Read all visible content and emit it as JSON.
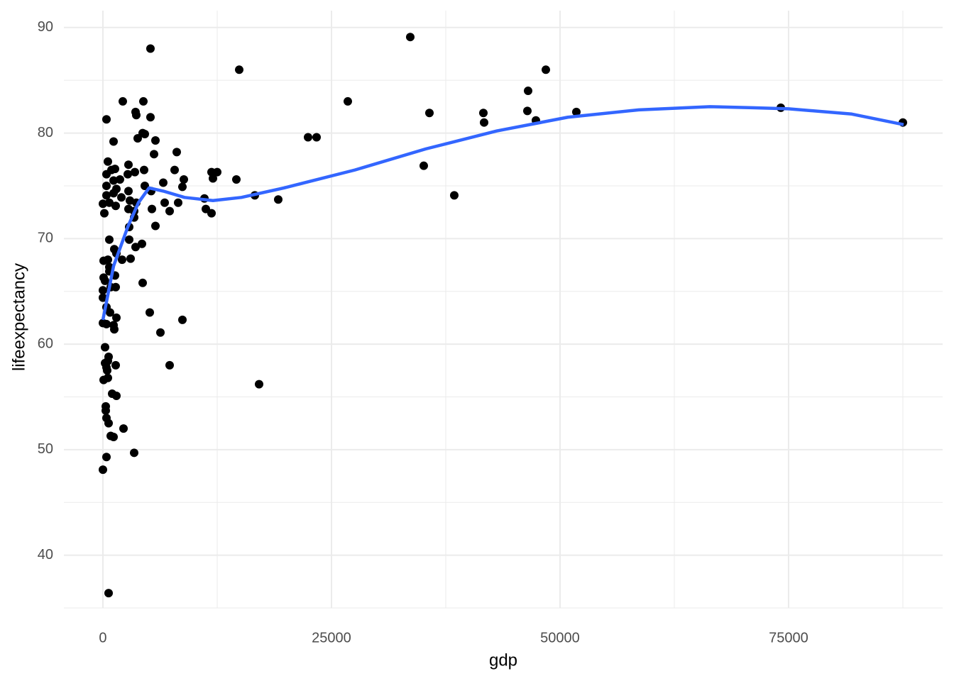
{
  "chart_data": {
    "type": "scatter",
    "x_label": "gdp",
    "y_label": "lifeexpectancy",
    "xlim": [
      -4270,
      91850
    ],
    "ylim": [
      35,
      91.6
    ],
    "xticks": [
      0,
      25000,
      50000,
      75000
    ],
    "yticks": [
      40,
      50,
      60,
      70,
      80,
      90
    ],
    "grid": true,
    "minor_grid": true,
    "points": {
      "color": "#000000",
      "x": [
        33618,
        5200,
        14907,
        48447,
        46506,
        2174,
        4425,
        26786,
        74146,
        35714,
        41615,
        46429,
        51786,
        41693,
        47360,
        87500,
        3571,
        3649,
        5200,
        388,
        4348,
        4581,
        22438,
        23370,
        1165,
        5745,
        3804,
        8075,
        5590,
        35093,
        543,
        2795,
        932,
        1320,
        4503,
        7842,
        3494,
        388,
        2717,
        11879,
        12500,
        12034,
        14596,
        8851,
        1165,
        1863,
        6600,
        4581,
        8696,
        388,
        1475,
        2795,
        5280,
        1165,
        16615,
        38431,
        388,
        2019,
        11102,
        19177,
        2950,
        6755,
        8230,
        0,
        699,
        1398,
        3649,
        2795,
        5357,
        7298,
        11258,
        11879,
        155,
        3416,
        3416,
        2873,
        5745,
        699,
        2873,
        4270,
        3571,
        1242,
        1475,
        78,
        543,
        2096,
        3028,
        699,
        699,
        1320,
        78,
        233,
        4348,
        854,
        1398,
        0,
        0,
        388,
        776,
        5124,
        1475,
        8696,
        0,
        388,
        1165,
        1242,
        6289,
        233,
        621,
        543,
        233,
        1398,
        7298,
        388,
        466,
        543,
        78,
        17081,
        1009,
        1475,
        311,
        311,
        388,
        621,
        2252,
        854,
        1165,
        3416,
        388,
        0,
        621
      ],
      "values": [
        89.1,
        88.0,
        86.0,
        86.0,
        84.0,
        83.0,
        83.0,
        83.0,
        82.4,
        81.9,
        81.9,
        82.1,
        82.0,
        81.0,
        81.2,
        81.0,
        82.0,
        81.7,
        81.5,
        81.3,
        80.0,
        79.9,
        79.6,
        79.6,
        79.2,
        79.3,
        79.5,
        78.2,
        78.0,
        76.9,
        77.3,
        77.0,
        76.5,
        76.6,
        76.5,
        76.5,
        76.3,
        76.1,
        76.1,
        76.3,
        76.3,
        75.7,
        75.6,
        75.6,
        75.5,
        75.6,
        75.3,
        75.0,
        74.9,
        75.0,
        74.7,
        74.5,
        74.5,
        74.3,
        74.1,
        74.1,
        74.1,
        73.9,
        73.8,
        73.7,
        73.6,
        73.4,
        73.4,
        73.3,
        73.4,
        73.1,
        73.4,
        72.8,
        72.8,
        72.6,
        72.8,
        72.4,
        72.4,
        72.6,
        72.0,
        71.1,
        71.2,
        69.9,
        69.9,
        69.5,
        69.2,
        69.0,
        68.6,
        67.9,
        68.0,
        68.0,
        68.1,
        67.3,
        66.9,
        66.5,
        66.3,
        66.0,
        65.8,
        65.4,
        65.4,
        65.1,
        64.4,
        63.5,
        63.0,
        63.0,
        62.5,
        62.3,
        62.0,
        61.9,
        61.8,
        61.4,
        61.1,
        59.7,
        58.8,
        58.4,
        58.2,
        58.0,
        58.0,
        57.8,
        57.5,
        56.8,
        56.6,
        56.2,
        55.3,
        55.1,
        54.1,
        53.7,
        53.0,
        52.5,
        52.0,
        51.3,
        51.2,
        49.7,
        49.3,
        48.1,
        36.4
      ]
    },
    "trend": {
      "color": "#3366ff",
      "x": [
        0,
        1165,
        2717,
        3882,
        5047,
        6600,
        8929,
        12034,
        15140,
        19798,
        27562,
        35326,
        43090,
        50854,
        58618,
        66382,
        71040,
        75000,
        81910,
        87578
      ],
      "values": [
        62.3,
        67.4,
        71.1,
        73.4,
        74.8,
        74.5,
        73.9,
        73.6,
        73.9,
        74.8,
        76.5,
        78.5,
        80.2,
        81.5,
        82.2,
        82.5,
        82.4,
        82.3,
        81.8,
        80.8
      ]
    }
  }
}
